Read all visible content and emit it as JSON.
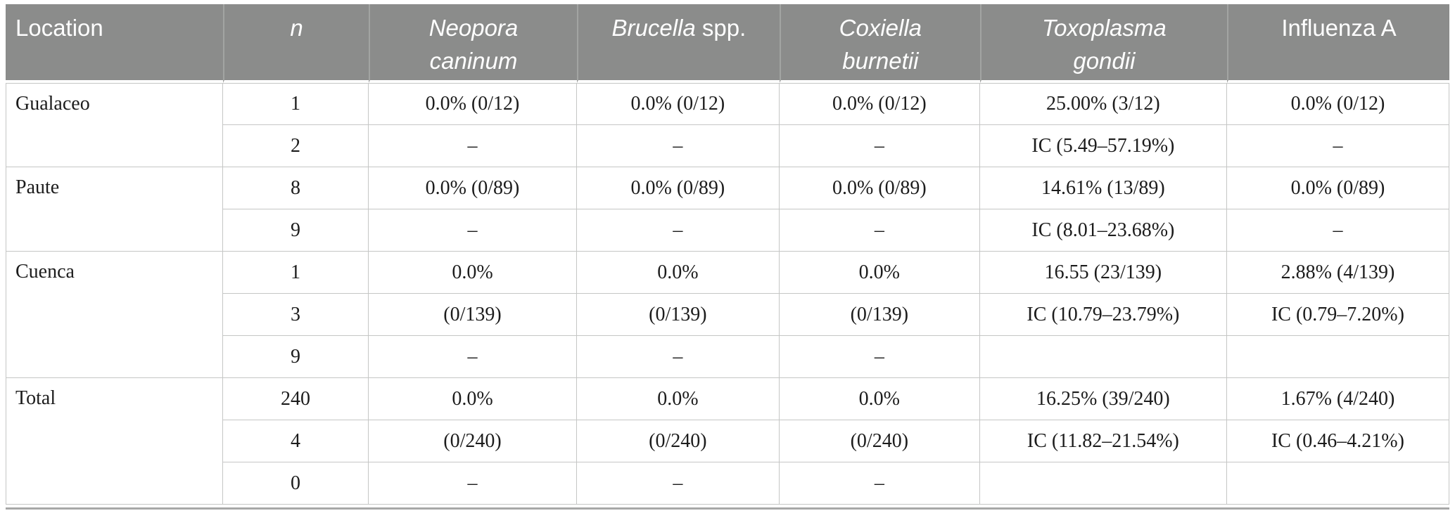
{
  "colors": {
    "header_bg": "#8b8c8b",
    "header_text": "#ffffff",
    "body_text": "#1c1c1c",
    "grid_line": "#c5c6c5",
    "bottom_rule": "#a7a8a7"
  },
  "table": {
    "header": [
      {
        "key": "location",
        "label": "Location",
        "style": "plain"
      },
      {
        "key": "n",
        "label": "n",
        "style": "italic"
      },
      {
        "key": "neopora-caninum",
        "label": "Neopora\ncaninum",
        "style": "italic"
      },
      {
        "key": "brucella-spp",
        "label": "Brucella",
        "suffix": " spp.",
        "style": "mixed"
      },
      {
        "key": "coxiella-burnetii",
        "label": "Coxiella\nburnetii",
        "style": "italic"
      },
      {
        "key": "toxoplasma-gondii",
        "label": "Toxoplasma\ngondii",
        "style": "italic"
      },
      {
        "key": "influenza-a",
        "label": "Influenza A",
        "style": "plain"
      }
    ],
    "groups": [
      {
        "location": "Gualaceo",
        "rows": [
          [
            "1",
            "0.0% (0/12)",
            "0.0% (0/12)",
            "0.0% (0/12)",
            "25.00% (3/12)",
            "0.0% (0/12)"
          ],
          [
            "2",
            "–",
            "–",
            "–",
            "IC (5.49–57.19%)",
            "–"
          ]
        ]
      },
      {
        "location": "Paute",
        "rows": [
          [
            "8",
            "0.0% (0/89)",
            "0.0% (0/89)",
            "0.0% (0/89)",
            "14.61% (13/89)",
            "0.0% (0/89)"
          ],
          [
            "9",
            "–",
            "–",
            "–",
            "IC (8.01–23.68%)",
            "–"
          ]
        ]
      },
      {
        "location": "Cuenca",
        "rows": [
          [
            "1",
            "0.0%",
            "0.0%",
            "0.0%",
            "16.55 (23/139)",
            "2.88% (4/139)"
          ],
          [
            "3",
            "(0/139)",
            "(0/139)",
            "(0/139)",
            "IC (10.79–23.79%)",
            "IC (0.79–7.20%)"
          ],
          [
            "9",
            "–",
            "–",
            "–",
            "",
            ""
          ]
        ]
      },
      {
        "location": "Total",
        "rows": [
          [
            "240",
            "0.0%",
            "0.0%",
            "0.0%",
            "16.25% (39/240)",
            "1.67% (4/240)"
          ],
          [
            "4",
            "(0/240)",
            "(0/240)",
            "(0/240)",
            "IC (11.82–21.54%)",
            "IC (0.46–4.21%)"
          ],
          [
            "0",
            "–",
            "–",
            "–",
            "",
            ""
          ]
        ]
      }
    ]
  }
}
